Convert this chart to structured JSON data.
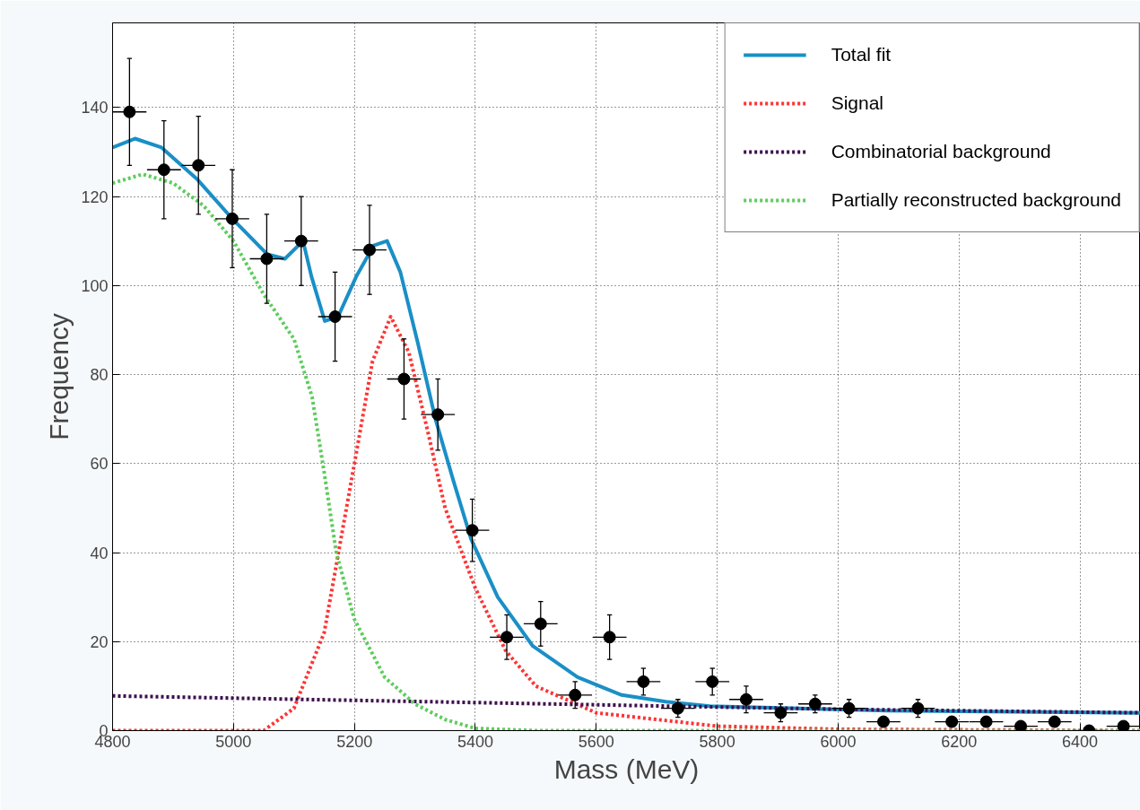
{
  "chart_data": {
    "type": "scatter",
    "xlabel": "Mass (MeV)",
    "ylabel": "Frequency",
    "xlim": [
      4800,
      6500
    ],
    "ylim": [
      0,
      159
    ],
    "xticks": [
      4800,
      5000,
      5200,
      5400,
      5600,
      5800,
      6000,
      6200,
      6400
    ],
    "yticks": [
      0,
      20,
      40,
      60,
      80,
      100,
      120,
      140
    ],
    "grid": true,
    "legend": "top right",
    "series": [
      {
        "marker": "circle",
        "color": "#000000",
        "x": [
          4828,
          4885,
          4942,
          4998,
          5055,
          5112,
          5168,
          5225,
          5282,
          5338,
          5395,
          5452,
          5508,
          5565,
          5622,
          5678,
          5735,
          5792,
          5848,
          5905,
          5962,
          6018,
          6075,
          6132,
          6188,
          6245,
          6302,
          6358,
          6415,
          6472
        ],
        "values": [
          139,
          126,
          127,
          115,
          106,
          110,
          93,
          108,
          79,
          71,
          45,
          21,
          24,
          8,
          21,
          11,
          5,
          11,
          7,
          4,
          6,
          5,
          2,
          5,
          2,
          2,
          1,
          2,
          0,
          1
        ],
        "errors": [
          12,
          11,
          11,
          11,
          10,
          10,
          10,
          10,
          9,
          8,
          7,
          5,
          5,
          3,
          5,
          3,
          2,
          3,
          3,
          2,
          2,
          2,
          1,
          2,
          1,
          1,
          1,
          1,
          1,
          1
        ],
        "xerrors": [
          28,
          28,
          28,
          28,
          28,
          28,
          28,
          28,
          28,
          28,
          28,
          28,
          28,
          28,
          28,
          28,
          28,
          28,
          28,
          28,
          28,
          28,
          28,
          28,
          28,
          28,
          28,
          28,
          28,
          28
        ]
      },
      {
        "type": "line",
        "marker": "none",
        "name": "Total fit",
        "color": "#1a8fc6",
        "line_style": "solid",
        "x": [
          4800,
          4837,
          4881,
          4939,
          4998,
          5056,
          5085,
          5115,
          5129,
          5151,
          5173,
          5203,
          5232,
          5254,
          5276,
          5305,
          5334,
          5364,
          5393,
          5437,
          5495,
          5569,
          5642,
          5715,
          5788,
          5935,
          6081,
          6500
        ],
        "values": [
          131,
          133,
          131,
          124,
          115,
          107,
          106,
          110,
          102,
          92,
          93,
          102,
          109,
          110,
          103,
          87,
          70,
          56,
          43,
          30,
          19,
          12,
          8,
          6.5,
          5.5,
          5,
          4.5,
          4
        ]
      },
      {
        "type": "line",
        "marker": "none",
        "name": "Signal",
        "color": "#ff3333",
        "line_style": "dotted",
        "x": [
          4800,
          5050,
          5100,
          5150,
          5200,
          5230,
          5260,
          5290,
          5320,
          5350,
          5400,
          5450,
          5500,
          5600,
          5800,
          6000,
          6500
        ],
        "values": [
          0,
          0,
          5,
          22,
          60,
          83,
          93,
          85,
          68,
          50,
          32,
          18,
          10,
          4,
          1,
          0.3,
          0
        ]
      },
      {
        "type": "line",
        "marker": "none",
        "name": "Combinatorial background",
        "color": "#3d0f4d",
        "line_style": "dotted",
        "x": [
          4800,
          5200,
          5600,
          6000,
          6500
        ],
        "values": [
          7.8,
          6.8,
          5.8,
          4.8,
          4
        ]
      },
      {
        "type": "line",
        "marker": "none",
        "name": "Partially reconstructed background",
        "color": "#5ccc5c",
        "line_style": "dotted",
        "x": [
          4800,
          4850,
          4900,
          4950,
          5000,
          5050,
          5100,
          5130,
          5150,
          5170,
          5200,
          5250,
          5300,
          5350,
          5400,
          5500,
          6500
        ],
        "values": [
          123,
          125,
          123,
          118,
          110,
          98,
          88,
          75,
          58,
          40,
          25,
          12,
          6,
          2.5,
          0.5,
          0,
          0
        ]
      }
    ]
  }
}
